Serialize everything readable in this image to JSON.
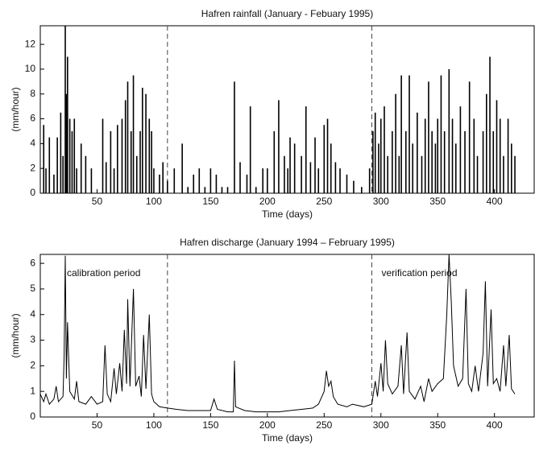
{
  "chart_data": [
    {
      "type": "spikes",
      "title": "Hafren rainfall  (January - Febuary 1995)",
      "xlabel": "Time (days)",
      "ylabel": "(mm/hour)",
      "color": "#000000",
      "xlim": [
        0,
        435
      ],
      "ylim": [
        0,
        13.5
      ],
      "xticks": [
        50,
        100,
        150,
        200,
        250,
        300,
        350,
        400
      ],
      "yticks": [
        0,
        2,
        4,
        6,
        8,
        10,
        12
      ],
      "dividers": [
        112,
        292
      ],
      "x": [
        3,
        5,
        8,
        12,
        15,
        18,
        20,
        22,
        23,
        24,
        26,
        28,
        30,
        32,
        36,
        40,
        45,
        55,
        58,
        62,
        65,
        68,
        72,
        75,
        77,
        80,
        82,
        85,
        88,
        90,
        93,
        96,
        98,
        100,
        105,
        108,
        112,
        118,
        125,
        130,
        135,
        140,
        145,
        150,
        155,
        160,
        165,
        171,
        176,
        182,
        185,
        190,
        196,
        200,
        206,
        210,
        215,
        218,
        220,
        224,
        230,
        234,
        238,
        242,
        245,
        250,
        253,
        256,
        260,
        264,
        270,
        276,
        283,
        290,
        293,
        295,
        298,
        300,
        303,
        306,
        310,
        313,
        316,
        318,
        322,
        325,
        328,
        332,
        336,
        339,
        342,
        345,
        348,
        350,
        353,
        356,
        360,
        363,
        366,
        370,
        374,
        378,
        382,
        385,
        390,
        393,
        396,
        399,
        402,
        405,
        408,
        412,
        415,
        418
      ],
      "values": [
        5.5,
        2,
        4.5,
        1.5,
        4.5,
        6.5,
        3,
        13.5,
        8,
        11,
        6,
        5,
        6,
        2,
        4,
        3,
        2,
        6,
        2.5,
        5,
        2,
        5.5,
        6,
        7.5,
        9,
        5,
        9.5,
        3,
        5,
        8.5,
        8,
        6,
        5,
        2,
        1.5,
        2.5,
        1,
        2,
        4,
        0.5,
        1.5,
        2,
        0.5,
        2,
        1.5,
        0.5,
        0.5,
        9,
        2.5,
        1.5,
        7,
        0.5,
        2,
        2,
        5,
        7.5,
        3,
        2,
        4.5,
        4,
        3,
        7,
        2.5,
        4.5,
        2,
        5.5,
        6,
        4,
        2.5,
        2,
        1.5,
        1,
        0.5,
        2,
        5,
        6.5,
        4,
        6,
        7,
        3,
        5,
        8,
        3,
        9.5,
        5,
        9.5,
        4,
        6.5,
        3,
        6,
        9,
        5,
        4,
        6,
        9.5,
        5,
        10,
        6,
        4,
        7,
        5,
        9,
        6,
        3,
        5,
        8,
        11,
        5,
        7.5,
        6,
        3,
        6,
        4,
        3
      ]
    },
    {
      "type": "line",
      "title": "Hafren discharge (January 1994 – February 1995)",
      "xlabel": "Time (days)",
      "ylabel": "(mm/hour)",
      "color": "#000000",
      "annotations": [
        "calibration period",
        "verification period"
      ],
      "xlim": [
        0,
        435
      ],
      "ylim": [
        0,
        6.35
      ],
      "xticks": [
        50,
        100,
        150,
        200,
        250,
        300,
        350,
        400
      ],
      "yticks": [
        0,
        1,
        2,
        3,
        4,
        5,
        6
      ],
      "dividers": [
        112,
        292
      ],
      "x": [
        0,
        3,
        5,
        8,
        12,
        14,
        16,
        20,
        21,
        22,
        23,
        24,
        26,
        30,
        32,
        34,
        40,
        45,
        50,
        55,
        57,
        59,
        62,
        65,
        67,
        70,
        72,
        74,
        76,
        77,
        79,
        82,
        84,
        87,
        89,
        91,
        93,
        96,
        98,
        100,
        105,
        112,
        120,
        130,
        140,
        150,
        153,
        156,
        165,
        170,
        171,
        172,
        180,
        190,
        200,
        210,
        220,
        230,
        240,
        245,
        250,
        252,
        254,
        256,
        258,
        262,
        270,
        275,
        285,
        292,
        295,
        297,
        300,
        302,
        304,
        306,
        310,
        315,
        318,
        320,
        323,
        325,
        330,
        335,
        338,
        342,
        345,
        350,
        355,
        358,
        360,
        362,
        364,
        368,
        372,
        375,
        377,
        380,
        383,
        386,
        390,
        392,
        394,
        397,
        399,
        402,
        405,
        408,
        410,
        413,
        415,
        418
      ],
      "values": [
        0.9,
        0.6,
        0.9,
        0.5,
        0.7,
        1.2,
        0.6,
        0.8,
        2.4,
        6.3,
        1.5,
        3.7,
        1.0,
        0.7,
        1.4,
        0.6,
        0.5,
        0.8,
        0.5,
        0.6,
        2.8,
        0.9,
        0.6,
        1.9,
        0.9,
        2.1,
        1.0,
        3.4,
        1.3,
        4.6,
        1.2,
        5.0,
        1.2,
        1.6,
        0.8,
        3.2,
        1.1,
        4.0,
        0.9,
        0.6,
        0.4,
        0.35,
        0.3,
        0.25,
        0.25,
        0.25,
        0.7,
        0.3,
        0.2,
        0.2,
        2.2,
        0.4,
        0.25,
        0.2,
        0.2,
        0.2,
        0.25,
        0.3,
        0.35,
        0.5,
        1.0,
        1.8,
        1.2,
        1.4,
        0.8,
        0.5,
        0.4,
        0.5,
        0.4,
        0.5,
        1.4,
        0.8,
        2.1,
        1.0,
        3.0,
        1.3,
        0.9,
        1.2,
        2.8,
        0.9,
        3.3,
        1.0,
        0.7,
        1.2,
        0.6,
        1.5,
        1.0,
        1.3,
        1.5,
        4.0,
        6.35,
        4.5,
        2.0,
        1.2,
        1.5,
        5.0,
        1.3,
        1.0,
        2.0,
        1.0,
        2.5,
        5.3,
        1.2,
        4.2,
        1.3,
        1.5,
        1.0,
        2.8,
        1.2,
        3.2,
        1.1,
        0.9
      ]
    }
  ]
}
